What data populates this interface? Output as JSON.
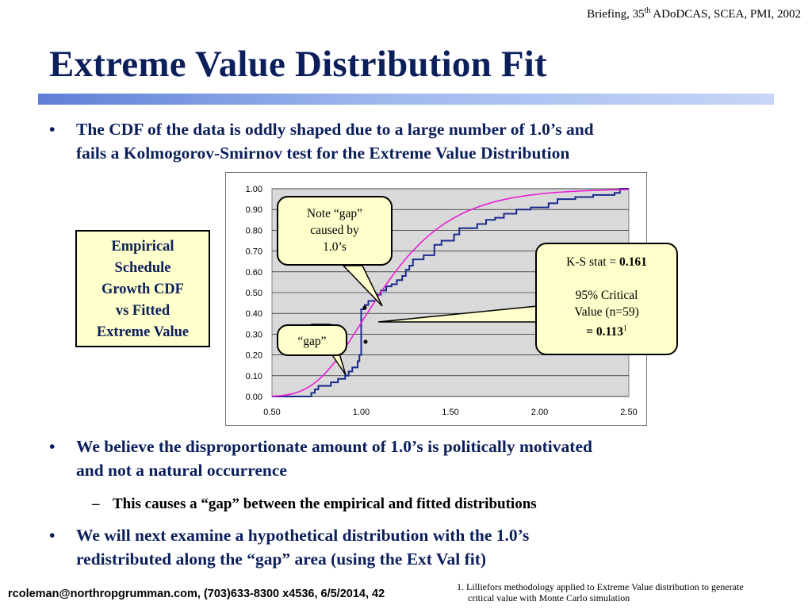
{
  "header": {
    "prefix": "Briefing, 35",
    "sup": "th",
    "suffix": " ADoDCAS, SCEA, PMI, 2002"
  },
  "title": "Extreme Value Distribution Fit",
  "bullets": [
    {
      "line1": "The CDF of the data is oddly shaped due to a large number of 1.0’s and",
      "line2": "fails a Kolmogorov-Smirnov test for the Extreme Value Distribution"
    },
    {
      "line1": "We believe the disproportionate amount of 1.0’s is politically motivated",
      "line2": "and not a natural occurrence"
    },
    {
      "line1": "We will next examine a hypothetical distribution with the 1.0’s",
      "line2": "redistributed along the “gap” area (using the Ext Val fit)"
    }
  ],
  "bullet_symbol": "•",
  "dash_symbol": "–",
  "sub_bullet": "This causes a “gap” between the empirical and fitted distributions",
  "side_label": [
    "Empirical",
    "Schedule",
    "Growth CDF",
    "vs Fitted",
    "Extreme Value"
  ],
  "callouts": {
    "note_gap": [
      "Note “gap”",
      "caused by",
      "1.0’s"
    ],
    "gap": "“gap”",
    "ks": {
      "stat_prefix": "K-S stat = ",
      "stat_value": "0.161",
      "crit1": "95% Critical",
      "crit2": "Value (n=59)",
      "crit3_prefix": "=  ",
      "crit_value": "0.113",
      "crit_sup": "1"
    }
  },
  "footer": "rcoleman@northropgrumman.com, (703)633-8300 x4536, 6/5/2014, 42",
  "footnote": {
    "line1": "1. Lilliefors methodology applied to Extreme Value distribution to generate",
    "line2": "critical value with Monte Carlo simulation"
  },
  "colors": {
    "title": "#0b1f5b",
    "empirical": "#1a2a8c",
    "fitted": "#e81fd6",
    "plot_bg": "#d9d9d9",
    "callout_fill": "#ffffcc"
  },
  "chart_data": {
    "type": "line",
    "xlim": [
      0.5,
      2.5
    ],
    "ylim": [
      0,
      1
    ],
    "xticks": [
      0.5,
      1.0,
      1.5,
      2.0,
      2.5
    ],
    "yticks": [
      0,
      0.1,
      0.2,
      0.3,
      0.4,
      0.5,
      0.6,
      0.7,
      0.8,
      0.9,
      1.0
    ],
    "xtick_labels": [
      "0.50",
      "1.00",
      "1.50",
      "2.00",
      "2.50"
    ],
    "ytick_labels": [
      "0.00",
      "0.10",
      "0.20",
      "0.30",
      "0.40",
      "0.50",
      "0.60",
      "0.70",
      "0.80",
      "0.90",
      "1.00"
    ],
    "grid": "horizontal",
    "series": [
      {
        "kind": "step",
        "points": [
          [
            0.5,
            0
          ],
          [
            0.72,
            0.017
          ],
          [
            0.74,
            0.034
          ],
          [
            0.76,
            0.051
          ],
          [
            0.83,
            0.068
          ],
          [
            0.87,
            0.085
          ],
          [
            0.91,
            0.1
          ],
          [
            0.93,
            0.12
          ],
          [
            0.95,
            0.14
          ],
          [
            0.98,
            0.17
          ],
          [
            0.99,
            0.2
          ],
          [
            1.0,
            0.27
          ],
          [
            1.0,
            0.42
          ],
          [
            1.02,
            0.44
          ],
          [
            1.04,
            0.46
          ],
          [
            1.08,
            0.49
          ],
          [
            1.11,
            0.51
          ],
          [
            1.14,
            0.53
          ],
          [
            1.17,
            0.54
          ],
          [
            1.2,
            0.56
          ],
          [
            1.23,
            0.58
          ],
          [
            1.25,
            0.61
          ],
          [
            1.27,
            0.63
          ],
          [
            1.29,
            0.66
          ],
          [
            1.35,
            0.68
          ],
          [
            1.41,
            0.73
          ],
          [
            1.45,
            0.75
          ],
          [
            1.52,
            0.78
          ],
          [
            1.55,
            0.81
          ],
          [
            1.65,
            0.83
          ],
          [
            1.7,
            0.85
          ],
          [
            1.75,
            0.86
          ],
          [
            1.8,
            0.88
          ],
          [
            1.87,
            0.9
          ],
          [
            1.95,
            0.91
          ],
          [
            2.05,
            0.93
          ],
          [
            2.1,
            0.95
          ],
          [
            2.2,
            0.96
          ],
          [
            2.3,
            0.97
          ],
          [
            2.42,
            0.98
          ],
          [
            2.45,
            1.0
          ]
        ]
      },
      {
        "kind": "fitted",
        "mode": 1.01,
        "scale": 0.27
      }
    ]
  }
}
